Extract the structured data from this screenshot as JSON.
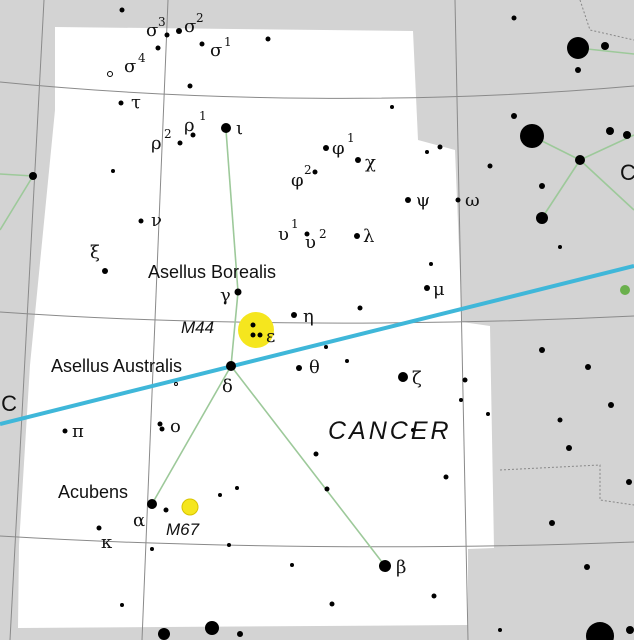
{
  "map": {
    "constellation_name": "CANCER",
    "neighbor_label_left": "IC",
    "neighbor_label_right": "C",
    "ecliptic_color": "#3fb7d9",
    "figure_line_color": "#9dc99a",
    "region_fill": "#ffffff",
    "background": "#d3d3d3",
    "cluster_color": "#f5e61e"
  },
  "named_stars": {
    "asellus_borealis": "Asellus Borealis",
    "asellus_australis": "Asellus Australis",
    "acubens": "Acubens"
  },
  "clusters": {
    "m44": "M44",
    "m67": "M67"
  },
  "greek": {
    "sigma3": "σ",
    "sigma3_sup": "3",
    "sigma2": "σ",
    "sigma2_sup": "2",
    "sigma4": "σ",
    "sigma4_sup": "4",
    "sigma1": "σ",
    "sigma1_sup": "1",
    "tau": "τ",
    "rho2": "ρ",
    "rho2_sup": "2",
    "rho1": "ρ",
    "rho1_sup": "1",
    "iota": "ι",
    "phi1": "φ",
    "phi1_sup": "1",
    "phi2": "φ",
    "phi2_sup": "2",
    "chi": "χ",
    "psi": "ψ",
    "omega": "ω",
    "nu": "ν",
    "upsilon1": "υ",
    "upsilon1_sup": "1",
    "upsilon2": "υ",
    "upsilon2_sup": "2",
    "lambda": "λ",
    "xi": "ξ",
    "mu": "μ",
    "gamma": "γ",
    "eta": "η",
    "epsilon": "ε",
    "theta": "θ",
    "delta": "δ",
    "zeta": "ζ",
    "pi": "π",
    "omicron": "ο",
    "alpha": "α",
    "kappa": "κ",
    "beta": "β"
  }
}
